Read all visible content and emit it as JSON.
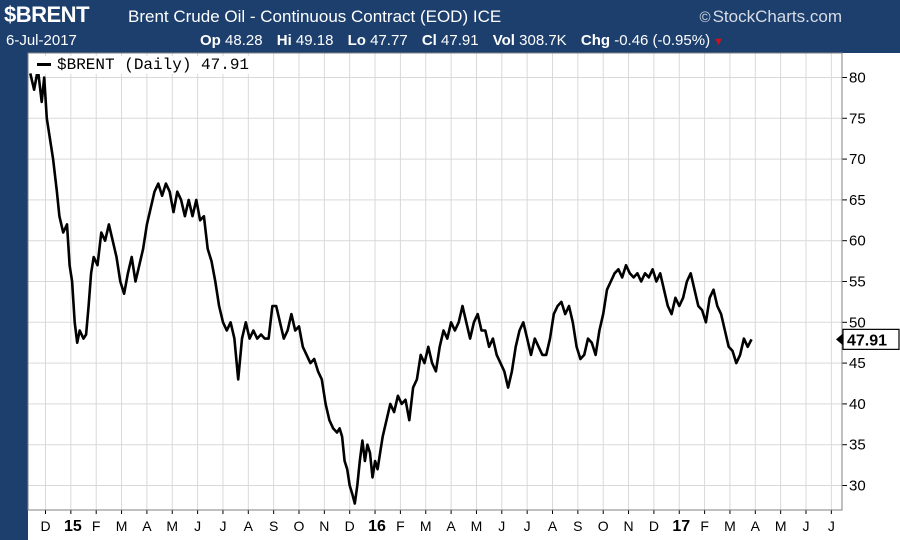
{
  "header": {
    "ticker": "$BRENT",
    "name": "Brent Crude Oil - Continuous Contract (EOD)",
    "exchange": "ICE",
    "brand": "StockCharts.com",
    "brand_icon": "copyright-icon",
    "date": "6-Jul-2017",
    "open_label": "Op",
    "open_value": "48.28",
    "high_label": "Hi",
    "high_value": "49.18",
    "low_label": "Lo",
    "low_value": "47.77",
    "close_label": "Cl",
    "close_value": "47.91",
    "volume_label": "Vol",
    "volume_value": "308.7K",
    "change_label": "Chg",
    "change_value": "-0.46 (-0.95%)"
  },
  "colors": {
    "frame": "#1c3f6e",
    "line": "#000000",
    "grid": "#d9d9d9",
    "down": "#d0101a"
  },
  "chart_data": {
    "type": "line",
    "legend": "$BRENT (Daily) 47.91",
    "last_value_label": "47.91",
    "ylim": [
      27,
      83
    ],
    "yticks": [
      30,
      35,
      40,
      45,
      50,
      55,
      60,
      65,
      70,
      75,
      80
    ],
    "xlim": [
      0,
      31.4
    ],
    "xticks": [
      {
        "x": 0,
        "label": "D",
        "bold": false
      },
      {
        "x": 1,
        "label": "15",
        "bold": true
      },
      {
        "x": 2,
        "label": "F",
        "bold": false
      },
      {
        "x": 3,
        "label": "M",
        "bold": false
      },
      {
        "x": 4,
        "label": "A",
        "bold": false
      },
      {
        "x": 5,
        "label": "M",
        "bold": false
      },
      {
        "x": 6,
        "label": "J",
        "bold": false
      },
      {
        "x": 7,
        "label": "J",
        "bold": false
      },
      {
        "x": 8,
        "label": "A",
        "bold": false
      },
      {
        "x": 9,
        "label": "S",
        "bold": false
      },
      {
        "x": 10,
        "label": "O",
        "bold": false
      },
      {
        "x": 11,
        "label": "N",
        "bold": false
      },
      {
        "x": 12,
        "label": "D",
        "bold": false
      },
      {
        "x": 13,
        "label": "16",
        "bold": true
      },
      {
        "x": 14,
        "label": "F",
        "bold": false
      },
      {
        "x": 15,
        "label": "M",
        "bold": false
      },
      {
        "x": 16,
        "label": "A",
        "bold": false
      },
      {
        "x": 17,
        "label": "M",
        "bold": false
      },
      {
        "x": 18,
        "label": "J",
        "bold": false
      },
      {
        "x": 19,
        "label": "J",
        "bold": false
      },
      {
        "x": 20,
        "label": "A",
        "bold": false
      },
      {
        "x": 21,
        "label": "S",
        "bold": false
      },
      {
        "x": 22,
        "label": "O",
        "bold": false
      },
      {
        "x": 23,
        "label": "N",
        "bold": false
      },
      {
        "x": 24,
        "label": "D",
        "bold": false
      },
      {
        "x": 25,
        "label": "17",
        "bold": true
      },
      {
        "x": 26,
        "label": "F",
        "bold": false
      },
      {
        "x": 27,
        "label": "M",
        "bold": false
      },
      {
        "x": 28,
        "label": "A",
        "bold": false
      },
      {
        "x": 29,
        "label": "M",
        "bold": false
      },
      {
        "x": 30,
        "label": "J",
        "bold": false
      },
      {
        "x": 31,
        "label": "J",
        "bold": false
      }
    ],
    "series": [
      {
        "values": [
          [
            -0.6,
            80.5
          ],
          [
            -0.45,
            78.5
          ],
          [
            -0.3,
            81
          ],
          [
            -0.15,
            77
          ],
          [
            -0.05,
            80
          ],
          [
            0.05,
            75
          ],
          [
            0.15,
            73
          ],
          [
            0.3,
            70
          ],
          [
            0.45,
            66
          ],
          [
            0.55,
            63
          ],
          [
            0.7,
            61
          ],
          [
            0.85,
            62
          ],
          [
            0.95,
            57
          ],
          [
            1.05,
            55
          ],
          [
            1.15,
            50
          ],
          [
            1.25,
            47.5
          ],
          [
            1.35,
            49
          ],
          [
            1.5,
            48
          ],
          [
            1.6,
            48.5
          ],
          [
            1.7,
            52
          ],
          [
            1.8,
            56
          ],
          [
            1.9,
            58
          ],
          [
            2.05,
            57
          ],
          [
            2.2,
            61
          ],
          [
            2.35,
            60
          ],
          [
            2.5,
            62
          ],
          [
            2.65,
            60
          ],
          [
            2.8,
            58
          ],
          [
            2.95,
            55
          ],
          [
            3.1,
            53.5
          ],
          [
            3.25,
            56
          ],
          [
            3.4,
            58
          ],
          [
            3.55,
            55
          ],
          [
            3.7,
            57
          ],
          [
            3.85,
            59
          ],
          [
            4.0,
            62
          ],
          [
            4.15,
            64
          ],
          [
            4.3,
            66
          ],
          [
            4.45,
            67
          ],
          [
            4.6,
            65.5
          ],
          [
            4.75,
            67
          ],
          [
            4.9,
            66
          ],
          [
            5.05,
            63.5
          ],
          [
            5.2,
            66
          ],
          [
            5.35,
            65
          ],
          [
            5.5,
            63
          ],
          [
            5.65,
            65
          ],
          [
            5.8,
            63
          ],
          [
            5.95,
            65
          ],
          [
            6.1,
            62.5
          ],
          [
            6.25,
            63
          ],
          [
            6.4,
            59
          ],
          [
            6.55,
            57.5
          ],
          [
            6.7,
            55
          ],
          [
            6.85,
            52
          ],
          [
            7.0,
            50
          ],
          [
            7.15,
            49
          ],
          [
            7.3,
            50
          ],
          [
            7.45,
            48
          ],
          [
            7.6,
            43
          ],
          [
            7.75,
            48
          ],
          [
            7.9,
            50
          ],
          [
            8.05,
            48
          ],
          [
            8.2,
            49
          ],
          [
            8.35,
            48
          ],
          [
            8.5,
            48.5
          ],
          [
            8.65,
            48
          ],
          [
            8.8,
            48
          ],
          [
            8.95,
            52
          ],
          [
            9.1,
            52
          ],
          [
            9.25,
            50
          ],
          [
            9.4,
            48
          ],
          [
            9.55,
            49
          ],
          [
            9.7,
            51
          ],
          [
            9.85,
            49
          ],
          [
            10.0,
            49.5
          ],
          [
            10.15,
            47
          ],
          [
            10.3,
            46
          ],
          [
            10.45,
            45
          ],
          [
            10.6,
            45.5
          ],
          [
            10.75,
            44
          ],
          [
            10.9,
            43
          ],
          [
            11.05,
            40
          ],
          [
            11.2,
            38
          ],
          [
            11.35,
            37
          ],
          [
            11.5,
            36.5
          ],
          [
            11.6,
            37
          ],
          [
            11.7,
            36
          ],
          [
            11.8,
            33
          ],
          [
            11.9,
            32
          ],
          [
            12.0,
            30
          ],
          [
            12.1,
            29
          ],
          [
            12.2,
            27.8
          ],
          [
            12.3,
            30
          ],
          [
            12.4,
            33
          ],
          [
            12.5,
            35.5
          ],
          [
            12.6,
            33
          ],
          [
            12.7,
            35
          ],
          [
            12.8,
            34
          ],
          [
            12.9,
            31
          ],
          [
            13.0,
            33
          ],
          [
            13.1,
            32
          ],
          [
            13.2,
            34
          ],
          [
            13.3,
            36
          ],
          [
            13.45,
            38
          ],
          [
            13.6,
            40
          ],
          [
            13.75,
            39
          ],
          [
            13.9,
            41
          ],
          [
            14.05,
            40
          ],
          [
            14.2,
            40.5
          ],
          [
            14.35,
            38
          ],
          [
            14.5,
            42
          ],
          [
            14.65,
            43
          ],
          [
            14.8,
            46
          ],
          [
            14.95,
            45
          ],
          [
            15.1,
            47
          ],
          [
            15.25,
            45
          ],
          [
            15.4,
            44
          ],
          [
            15.55,
            47
          ],
          [
            15.7,
            49
          ],
          [
            15.85,
            48
          ],
          [
            16.0,
            50
          ],
          [
            16.15,
            49
          ],
          [
            16.3,
            50
          ],
          [
            16.45,
            52
          ],
          [
            16.6,
            50
          ],
          [
            16.75,
            48
          ],
          [
            16.9,
            50
          ],
          [
            17.05,
            51
          ],
          [
            17.2,
            49
          ],
          [
            17.35,
            49
          ],
          [
            17.5,
            47
          ],
          [
            17.65,
            48
          ],
          [
            17.8,
            46
          ],
          [
            17.95,
            45
          ],
          [
            18.1,
            44
          ],
          [
            18.25,
            42
          ],
          [
            18.4,
            44
          ],
          [
            18.55,
            47
          ],
          [
            18.7,
            49
          ],
          [
            18.85,
            50
          ],
          [
            19.0,
            48
          ],
          [
            19.15,
            46
          ],
          [
            19.3,
            48
          ],
          [
            19.45,
            47
          ],
          [
            19.6,
            46
          ],
          [
            19.75,
            46
          ],
          [
            19.9,
            48
          ],
          [
            20.05,
            51
          ],
          [
            20.2,
            52
          ],
          [
            20.35,
            52.5
          ],
          [
            20.5,
            51
          ],
          [
            20.65,
            52
          ],
          [
            20.8,
            50
          ],
          [
            20.95,
            47
          ],
          [
            21.1,
            45.5
          ],
          [
            21.25,
            46
          ],
          [
            21.4,
            48
          ],
          [
            21.55,
            47.5
          ],
          [
            21.7,
            46
          ],
          [
            21.85,
            49
          ],
          [
            22.0,
            51
          ],
          [
            22.15,
            54
          ],
          [
            22.3,
            55
          ],
          [
            22.45,
            56
          ],
          [
            22.6,
            56.5
          ],
          [
            22.75,
            55.5
          ],
          [
            22.9,
            57
          ],
          [
            23.05,
            56
          ],
          [
            23.2,
            55.5
          ],
          [
            23.35,
            56
          ],
          [
            23.5,
            55
          ],
          [
            23.65,
            56
          ],
          [
            23.8,
            55.5
          ],
          [
            23.95,
            56.5
          ],
          [
            24.1,
            55
          ],
          [
            24.25,
            56
          ],
          [
            24.4,
            54
          ],
          [
            24.55,
            52
          ],
          [
            24.7,
            51
          ],
          [
            24.85,
            53
          ],
          [
            25.0,
            52
          ],
          [
            25.15,
            53
          ],
          [
            25.3,
            55
          ],
          [
            25.45,
            56
          ],
          [
            25.6,
            54
          ],
          [
            25.75,
            52
          ],
          [
            25.9,
            51.5
          ],
          [
            26.05,
            50
          ],
          [
            26.2,
            53
          ],
          [
            26.35,
            54
          ],
          [
            26.5,
            52
          ],
          [
            26.65,
            51
          ],
          [
            26.8,
            49
          ],
          [
            26.95,
            47
          ],
          [
            27.1,
            46.5
          ],
          [
            27.25,
            45
          ],
          [
            27.4,
            46
          ],
          [
            27.55,
            48
          ],
          [
            27.7,
            47
          ],
          [
            27.85,
            47.91
          ]
        ]
      }
    ]
  }
}
